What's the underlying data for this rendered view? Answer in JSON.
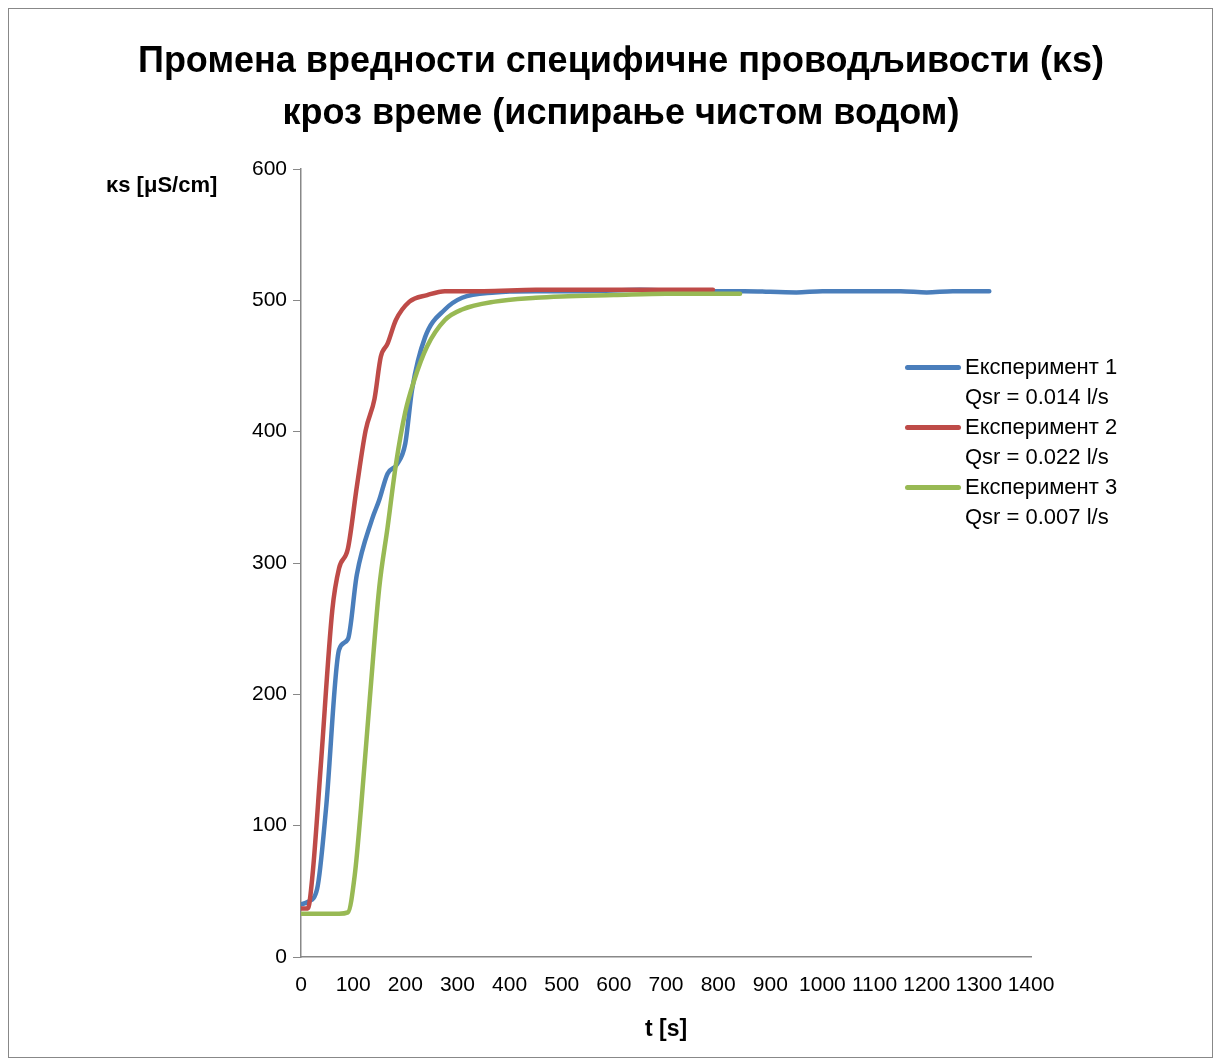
{
  "chart_data": {
    "type": "line",
    "title": "Промена вредности специфичне проводљивости (κs) кроз време (испирање чистом водом)",
    "xlabel": "t [s]",
    "ylabel": "κs [μS/cm]",
    "xlim": [
      0,
      1400
    ],
    "xticks": [
      0,
      100,
      200,
      300,
      400,
      500,
      600,
      700,
      800,
      900,
      1000,
      1100,
      1200,
      1300,
      1400
    ],
    "ylim": [
      0,
      600
    ],
    "yticks": [
      0,
      100,
      200,
      300,
      400,
      500,
      600
    ],
    "grid": false,
    "legend": "right",
    "marker": "none",
    "line_style": "solid",
    "series": [
      {
        "name": "Експеримент 1\nQsr = 0.014 l/s",
        "color": "#4a7ebb",
        "x": [
          0,
          13,
          31,
          48,
          73,
          90,
          107,
          136,
          150,
          166,
          184,
          200,
          213,
          238,
          276,
          309,
          372,
          450,
          550,
          650,
          750,
          850,
          950,
          1000,
          1100,
          1150,
          1200,
          1250,
          1320
        ],
        "values": [
          40,
          42,
          52,
          113,
          234,
          242,
          291,
          333,
          348,
          368,
          375,
          391,
          432,
          472,
          493,
          502,
          506,
          507,
          507,
          508,
          507,
          507,
          506,
          507,
          507,
          507,
          506,
          507,
          507
        ]
      },
      {
        "name": "Експеримент 2\nQsr = 0.022 l/s",
        "color": "#be4b48",
        "x": [
          0,
          13,
          22,
          38,
          60,
          73,
          90,
          107,
          124,
          141,
          153,
          166,
          182,
          208,
          242,
          276,
          350,
          450,
          550,
          650,
          790
        ],
        "values": [
          37,
          37,
          62,
          146,
          264,
          296,
          311,
          358,
          401,
          425,
          457,
          467,
          485,
          499,
          504,
          507,
          507,
          508,
          508,
          508,
          508
        ]
      },
      {
        "name": "Експеримент 3\nQsr = 0.007 l/s",
        "color": "#98b954",
        "x": [
          0,
          40,
          73,
          90,
          103,
          115,
          132,
          150,
          166,
          182,
          200,
          217,
          242,
          276,
          309,
          372,
          450,
          500,
          600,
          700,
          842
        ],
        "values": [
          33,
          33,
          33,
          34,
          62,
          113,
          197,
          281,
          327,
          375,
          415,
          439,
          465,
          485,
          493,
          499,
          502,
          503,
          504,
          505,
          505
        ]
      }
    ]
  }
}
